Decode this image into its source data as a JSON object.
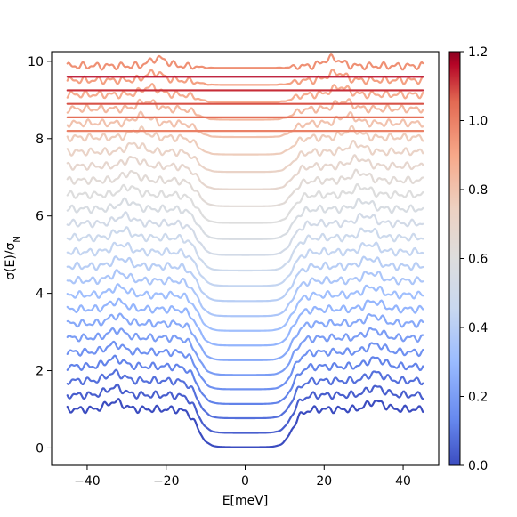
{
  "chart_data": {
    "type": "line",
    "title": "",
    "xlabel": "E[meV]",
    "ylabel": "σ(E)/σ_N",
    "ylabel_parts": {
      "main": "σ(E)/σ",
      "sub": "N"
    },
    "xlim": [
      -49,
      49
    ],
    "ylim": [
      -0.45,
      10.25
    ],
    "xticks": [
      -40,
      -20,
      0,
      20,
      40
    ],
    "xtick_labels": [
      "−40",
      "−20",
      "0",
      "20",
      "40"
    ],
    "yticks": [
      0,
      2,
      4,
      6,
      8,
      10
    ],
    "ytick_labels": [
      "0",
      "2",
      "4",
      "6",
      "8",
      "10"
    ],
    "grid": false,
    "legend": "none",
    "colormap": "coolwarm",
    "colormap_stops": [
      "#3b4cc0",
      "#6688ee",
      "#9abbff",
      "#c9d8ef",
      "#dddddd",
      "#edd1c2",
      "#f7a889",
      "#e26952",
      "#b40426",
      "#8a0221"
    ],
    "colorbar": {
      "label": "",
      "range": [
        0.0,
        1.2
      ],
      "ticks": [
        0.0,
        0.2,
        0.4,
        0.6,
        0.8,
        1.0,
        1.2
      ],
      "tick_labels": [
        "0.0",
        "0.2",
        "0.4",
        "0.6",
        "0.8",
        "1.0",
        "1.2"
      ],
      "position": "right"
    },
    "x_domain": [
      -45,
      45
    ],
    "series_description": "Stacked conductance spectra versus energy, vertically offset, colored by temperature ratio on coolwarm scale",
    "series": [
      {
        "value": 0.0,
        "offset": 0.0,
        "base": 1.0,
        "depth": 0.98,
        "gap": 12.0,
        "peak_pos": 33.0,
        "peak_amp": 0.2,
        "noise": 0.12
      },
      {
        "value": 0.04,
        "offset": 0.37,
        "base": 1.0,
        "depth": 0.98,
        "gap": 12.0,
        "peak_pos": 33.0,
        "peak_amp": 0.2,
        "noise": 0.12
      },
      {
        "value": 0.08,
        "offset": 0.74,
        "base": 1.0,
        "depth": 0.97,
        "gap": 12.0,
        "peak_pos": 33.0,
        "peak_amp": 0.2,
        "noise": 0.12
      },
      {
        "value": 0.12,
        "offset": 1.11,
        "base": 1.0,
        "depth": 0.97,
        "gap": 12.0,
        "peak_pos": 33.0,
        "peak_amp": 0.2,
        "noise": 0.12
      },
      {
        "value": 0.16,
        "offset": 1.48,
        "base": 1.0,
        "depth": 0.96,
        "gap": 12.0,
        "peak_pos": 33.0,
        "peak_amp": 0.2,
        "noise": 0.12
      },
      {
        "value": 0.2,
        "offset": 1.85,
        "base": 1.0,
        "depth": 0.96,
        "gap": 12.0,
        "peak_pos": 32.5,
        "peak_amp": 0.2,
        "noise": 0.12
      },
      {
        "value": 0.24,
        "offset": 2.22,
        "base": 1.0,
        "depth": 0.95,
        "gap": 12.0,
        "peak_pos": 32.5,
        "peak_amp": 0.2,
        "noise": 0.12
      },
      {
        "value": 0.28,
        "offset": 2.59,
        "base": 1.0,
        "depth": 0.94,
        "gap": 12.0,
        "peak_pos": 32.5,
        "peak_amp": 0.2,
        "noise": 0.12
      },
      {
        "value": 0.32,
        "offset": 2.96,
        "base": 1.0,
        "depth": 0.93,
        "gap": 12.0,
        "peak_pos": 32.0,
        "peak_amp": 0.2,
        "noise": 0.12
      },
      {
        "value": 0.36,
        "offset": 3.33,
        "base": 1.0,
        "depth": 0.92,
        "gap": 12.0,
        "peak_pos": 32.0,
        "peak_amp": 0.2,
        "noise": 0.12
      },
      {
        "value": 0.4,
        "offset": 3.7,
        "base": 1.0,
        "depth": 0.9,
        "gap": 12.0,
        "peak_pos": 31.5,
        "peak_amp": 0.2,
        "noise": 0.12
      },
      {
        "value": 0.44,
        "offset": 4.07,
        "base": 1.0,
        "depth": 0.88,
        "gap": 12.0,
        "peak_pos": 31.5,
        "peak_amp": 0.2,
        "noise": 0.12
      },
      {
        "value": 0.48,
        "offset": 4.44,
        "base": 1.0,
        "depth": 0.85,
        "gap": 12.0,
        "peak_pos": 31.0,
        "peak_amp": 0.2,
        "noise": 0.12
      },
      {
        "value": 0.52,
        "offset": 4.81,
        "base": 1.0,
        "depth": 0.82,
        "gap": 12.0,
        "peak_pos": 30.5,
        "peak_amp": 0.2,
        "noise": 0.12
      },
      {
        "value": 0.56,
        "offset": 5.18,
        "base": 1.0,
        "depth": 0.78,
        "gap": 12.0,
        "peak_pos": 30.0,
        "peak_amp": 0.2,
        "noise": 0.12
      },
      {
        "value": 0.6,
        "offset": 5.55,
        "base": 1.0,
        "depth": 0.73,
        "gap": 12.0,
        "peak_pos": 29.5,
        "peak_amp": 0.2,
        "noise": 0.12
      },
      {
        "value": 0.64,
        "offset": 5.92,
        "base": 1.0,
        "depth": 0.67,
        "gap": 12.0,
        "peak_pos": 29.0,
        "peak_amp": 0.2,
        "noise": 0.12
      },
      {
        "value": 0.68,
        "offset": 6.29,
        "base": 1.0,
        "depth": 0.6,
        "gap": 12.0,
        "peak_pos": 28.5,
        "peak_amp": 0.2,
        "noise": 0.12
      },
      {
        "value": 0.72,
        "offset": 6.66,
        "base": 1.0,
        "depth": 0.52,
        "gap": 12.0,
        "peak_pos": 28.0,
        "peak_amp": 0.2,
        "noise": 0.12
      },
      {
        "value": 0.76,
        "offset": 7.03,
        "base": 1.0,
        "depth": 0.44,
        "gap": 12.0,
        "peak_pos": 27.0,
        "peak_amp": 0.2,
        "noise": 0.12
      },
      {
        "value": 0.8,
        "offset": 7.4,
        "base": 1.0,
        "depth": 0.36,
        "gap": 12.0,
        "peak_pos": 26.0,
        "peak_amp": 0.2,
        "noise": 0.12
      },
      {
        "value": 0.84,
        "offset": 7.77,
        "base": 1.0,
        "depth": 0.28,
        "gap": 12.0,
        "peak_pos": 25.0,
        "peak_amp": 0.2,
        "noise": 0.12
      },
      {
        "value": 0.88,
        "offset": 8.14,
        "base": 1.0,
        "depth": 0.2,
        "gap": 12.0,
        "peak_pos": 24.0,
        "peak_amp": 0.2,
        "noise": 0.12
      },
      {
        "value": 0.92,
        "offset": 8.51,
        "base": 1.0,
        "depth": 0.12,
        "gap": 12.0,
        "peak_pos": 23.0,
        "peak_amp": 0.2,
        "noise": 0.12
      },
      {
        "value": 0.96,
        "offset": 8.88,
        "base": 1.0,
        "depth": 0.05,
        "gap": 12.0,
        "peak_pos": 22.0,
        "peak_amp": 0.2,
        "noise": 0.12
      },
      {
        "value": 1.0,
        "offset": 7.2,
        "base": 1.0,
        "depth": 0.0,
        "gap": 0,
        "peak_pos": 0,
        "peak_amp": 0,
        "noise": 0
      },
      {
        "value": 1.04,
        "offset": 7.55,
        "base": 1.0,
        "depth": 0.0,
        "gap": 0,
        "peak_pos": 0,
        "peak_amp": 0,
        "noise": 0
      },
      {
        "value": 1.08,
        "offset": 7.9,
        "base": 1.0,
        "depth": 0.0,
        "gap": 0,
        "peak_pos": 0,
        "peak_amp": 0,
        "noise": 0
      },
      {
        "value": 1.12,
        "offset": 8.25,
        "base": 1.0,
        "depth": 0.0,
        "gap": 0,
        "peak_pos": 0,
        "peak_amp": 0,
        "noise": 0
      },
      {
        "value": 1.16,
        "offset": 8.6,
        "base": 1.0,
        "depth": 0.0,
        "gap": 0,
        "peak_pos": 0,
        "peak_amp": 0,
        "noise": 0
      }
    ]
  }
}
